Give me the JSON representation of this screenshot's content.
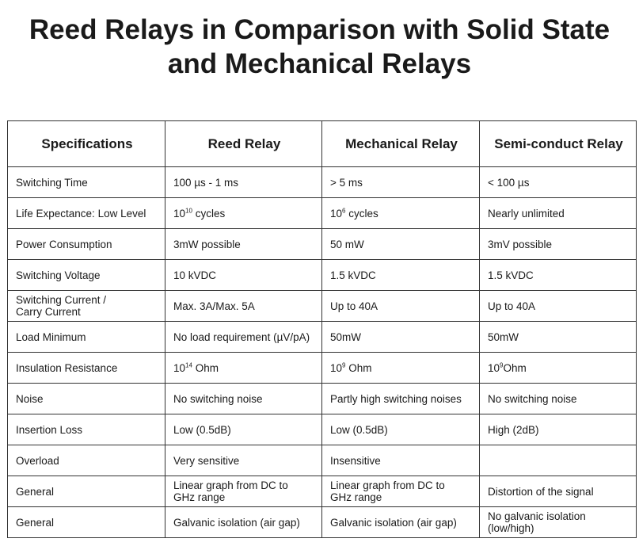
{
  "title_line1": "Reed Relays in Comparison with Solid State",
  "title_line2": "and Mechanical Relays",
  "headers": [
    "Specifications",
    "Reed Relay",
    "Mechanical Relay",
    "Semi-conduct Relay"
  ],
  "rows": [
    {
      "spec": "Switching Time",
      "reed": "100 µs - 1 ms",
      "mechanical": "> 5 ms",
      "semi": "< 100 µs"
    },
    {
      "spec": "Life Expectance: Low Level",
      "reed_base": "10",
      "reed_exp": "10",
      "reed_suffix": " cycles",
      "mech_base": "10",
      "mech_exp": "6",
      "mech_suffix": " cycles",
      "semi": "Nearly unlimited"
    },
    {
      "spec": "Power Consumption",
      "reed": "3mW possible",
      "mechanical": "50 mW",
      "semi": "3mV possible"
    },
    {
      "spec": "Switching Voltage",
      "reed": "10 kVDC",
      "mechanical": "1.5 kVDC",
      "semi": "1.5 kVDC"
    },
    {
      "spec_line1": "Switching Current /",
      "spec_line2": "Carry Current",
      "reed": "Max. 3A/Max. 5A",
      "mechanical": "Up to 40A",
      "semi": "Up to 40A"
    },
    {
      "spec": "Load Minimum",
      "reed": "No load requirement (µV/pA)",
      "mechanical": "50mW",
      "semi": "50mW"
    },
    {
      "spec": "Insulation Resistance",
      "reed_base": "10",
      "reed_exp": "14",
      "reed_suffix": " Ohm",
      "mech_base": "10",
      "mech_exp": "9",
      "mech_suffix": " Ohm",
      "semi_base": "10",
      "semi_exp": "9",
      "semi_suffix": "Ohm"
    },
    {
      "spec": "Noise",
      "reed": "No switching noise",
      "mechanical": "Partly high switching noises",
      "semi": "No switching noise"
    },
    {
      "spec": "Insertion Loss",
      "reed": "Low (0.5dB)",
      "mechanical": "Low (0.5dB)",
      "semi": "High (2dB)"
    },
    {
      "spec": "Overload",
      "reed": "Very sensitive",
      "mechanical": "Insensitive",
      "semi": ""
    },
    {
      "spec": "General",
      "reed_line1": "Linear graph from DC to",
      "reed_line2": "GHz range",
      "mech_line1": "Linear graph from DC to",
      "mech_line2": "GHz range",
      "semi": "Distortion of the signal"
    },
    {
      "spec": "General",
      "reed": "Galvanic isolation (air gap)",
      "mechanical": "Galvanic isolation (air gap)",
      "semi_line1": "No galvanic isolation",
      "semi_line2": "(low/high)"
    }
  ]
}
